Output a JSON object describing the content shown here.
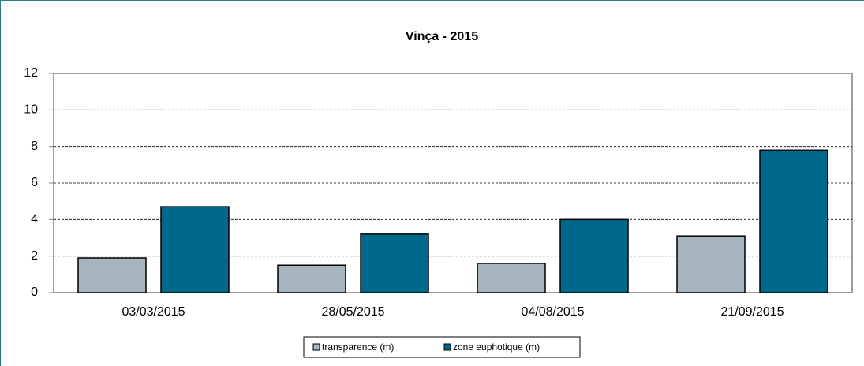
{
  "chart_data": {
    "type": "bar",
    "title": "Vinça  - 2015",
    "categories": [
      "03/03/2015",
      "28/05/2015",
      "04/08/2015",
      "21/09/2015"
    ],
    "series": [
      {
        "name": "transparence (m)",
        "color": "#a5b4bd",
        "values": [
          1.9,
          1.5,
          1.6,
          3.1
        ]
      },
      {
        "name": "zone euphotique (m)",
        "color": "#00688a",
        "values": [
          4.7,
          3.2,
          4.0,
          7.8
        ]
      }
    ],
    "ylim": [
      0,
      12
    ],
    "yticks": [
      0,
      2,
      4,
      6,
      8,
      10,
      12
    ],
    "grid": true,
    "legend": "bottom"
  }
}
